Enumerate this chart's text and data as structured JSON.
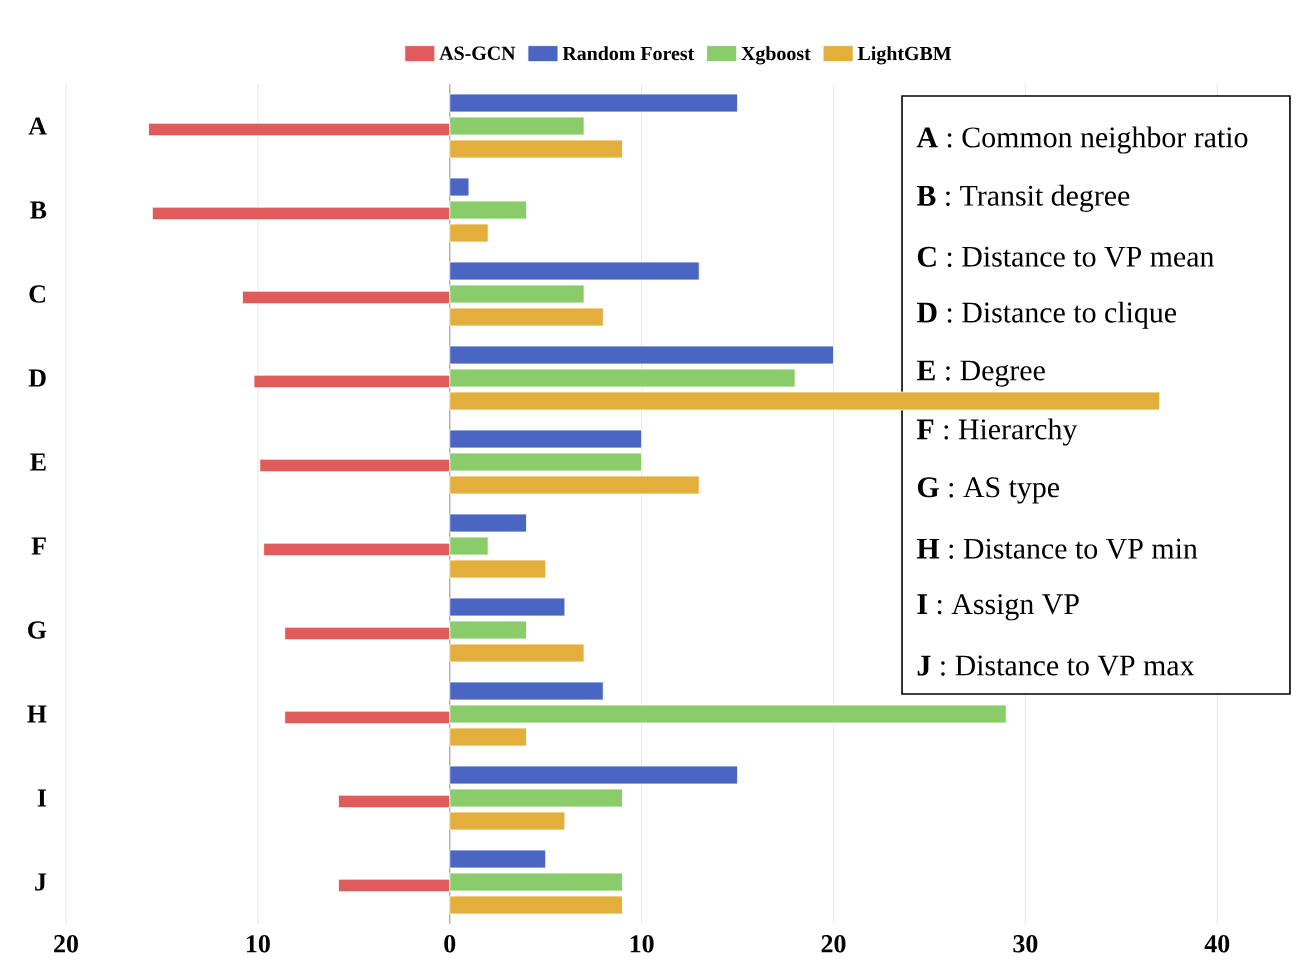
{
  "chart_data": {
    "type": "bar",
    "orientation": "horizontal",
    "categories": [
      "A",
      "B",
      "C",
      "D",
      "E",
      "F",
      "G",
      "H",
      "I",
      "J"
    ],
    "series": [
      {
        "name": "AS-GCN",
        "color": "#e05c5c",
        "values": [
          -15.7,
          -15.5,
          -10.8,
          -10.2,
          -9.9,
          -9.7,
          -8.6,
          -8.6,
          -5.8,
          -5.8
        ]
      },
      {
        "name": "Random Forest",
        "color": "#4a66c2",
        "values": [
          15,
          1,
          13,
          20,
          10,
          4,
          6,
          8,
          15,
          5
        ]
      },
      {
        "name": "Xgboost",
        "color": "#8acb6a",
        "values": [
          7,
          4,
          7,
          18,
          10,
          2,
          4,
          29,
          9,
          9
        ]
      },
      {
        "name": "LightGBM",
        "color": "#e3ae3c",
        "values": [
          9,
          2,
          8,
          37,
          13,
          5,
          7,
          4,
          6,
          9
        ]
      }
    ],
    "xlim": [
      -20,
      44
    ],
    "xticks": [
      {
        "value": -20,
        "label": "20"
      },
      {
        "value": -10,
        "label": "10"
      },
      0,
      10,
      20,
      30,
      40
    ],
    "grid": "x",
    "legend": "top",
    "annotations": [
      "**A** : Common neighbor ratio",
      "**B** : Transit degree",
      "**C** : Distance to VP mean",
      "**D** : Distance to clique",
      "**E** : Degree",
      "**F** : Hierarchy",
      "**G** : AS type",
      "**H** : Distance to VP min",
      "**I** : Assign VP",
      "**J** : Distance to VP max"
    ]
  }
}
